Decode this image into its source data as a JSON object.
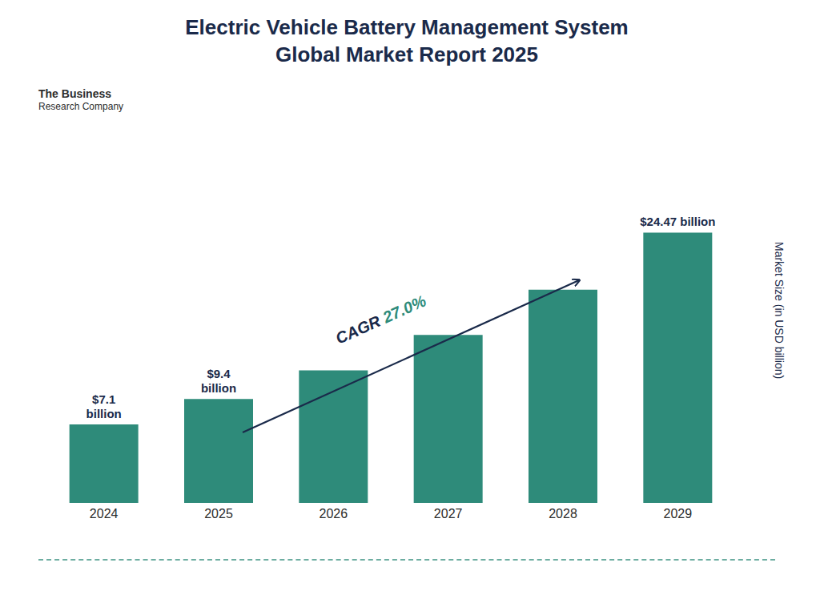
{
  "chart_data": {
    "type": "bar",
    "title": "Electric Vehicle Battery Management System\nGlobal Market Report 2025",
    "ylabel": "Market Size (in USD billion)",
    "categories": [
      "2024",
      "2025",
      "2026",
      "2027",
      "2028",
      "2029"
    ],
    "values": [
      7.1,
      9.4,
      12.0,
      15.2,
      19.3,
      24.47
    ],
    "value_labels": [
      "$7.1\nbillion",
      "$9.4\nbillion",
      null,
      null,
      null,
      "$24.47 billion"
    ],
    "data_labels": true,
    "color": "#2e8b7a",
    "ylim": [
      0,
      29
    ],
    "tick_labels": "x",
    "annotations": [
      {
        "text": "The Business"
      },
      {
        "text": "Research Company"
      },
      {
        "text": "CAGR",
        "color": "#1a2a4a"
      },
      {
        "text": "27.0%",
        "color": "#2e8b7a"
      }
    ]
  }
}
